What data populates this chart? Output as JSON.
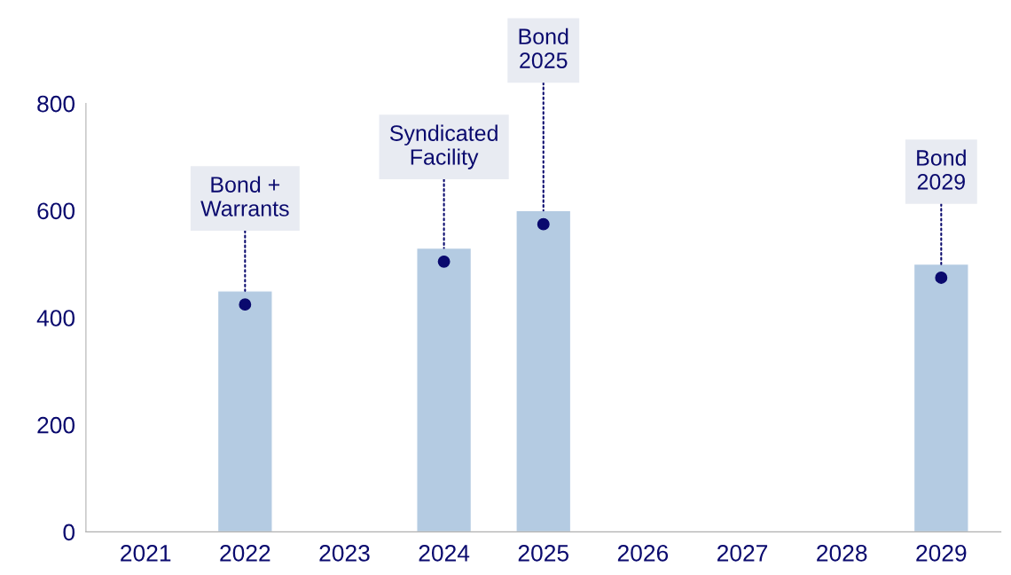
{
  "chart_data": {
    "type": "bar",
    "categories": [
      "2021",
      "2022",
      "2023",
      "2024",
      "2025",
      "2026",
      "2027",
      "2028",
      "2029"
    ],
    "values": [
      null,
      450,
      null,
      530,
      600,
      null,
      null,
      null,
      500
    ],
    "color": "#b4cbe2",
    "ylim": [
      0,
      800
    ],
    "yticks": [
      0,
      200,
      400,
      600,
      800
    ],
    "grid": false,
    "legend": false,
    "annotations": [
      {
        "text": "Bond +\nWarrants",
        "x": "2022",
        "y": 450
      },
      {
        "text": "Syndicated\nFacility",
        "x": "2024",
        "y": 530
      },
      {
        "text": "Bond\n2025",
        "x": "2025",
        "y": 600
      },
      {
        "text": "Bond\n2029",
        "x": "2029",
        "y": 500
      }
    ]
  }
}
